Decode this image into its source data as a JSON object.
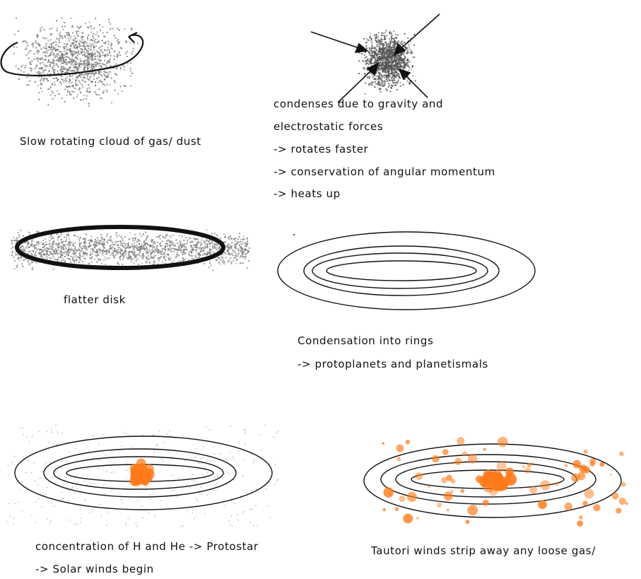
{
  "panels": [
    {
      "id": "cloud",
      "caption": "Slow rotating cloud of gas/ dust"
    },
    {
      "id": "condense",
      "lines": [
        "condenses due to gravity and",
        "electrostatic forces",
        "-> rotates faster",
        "-> conservation of angular momentum",
        "-> heats up"
      ]
    },
    {
      "id": "disk",
      "caption": "flatter disk"
    },
    {
      "id": "rings",
      "lines": [
        "Condensation into rings",
        "-> protoplanets and planetismals"
      ]
    },
    {
      "id": "protostar",
      "lines": [
        "concentration of H and He -> Protostar",
        "-> Solar winds begin"
      ]
    },
    {
      "id": "winds",
      "caption": "Tautori winds strip away any loose gas/"
    }
  ],
  "colors": {
    "ink": "#111111",
    "dust": "#777777",
    "blob": "#ff7a1a"
  }
}
